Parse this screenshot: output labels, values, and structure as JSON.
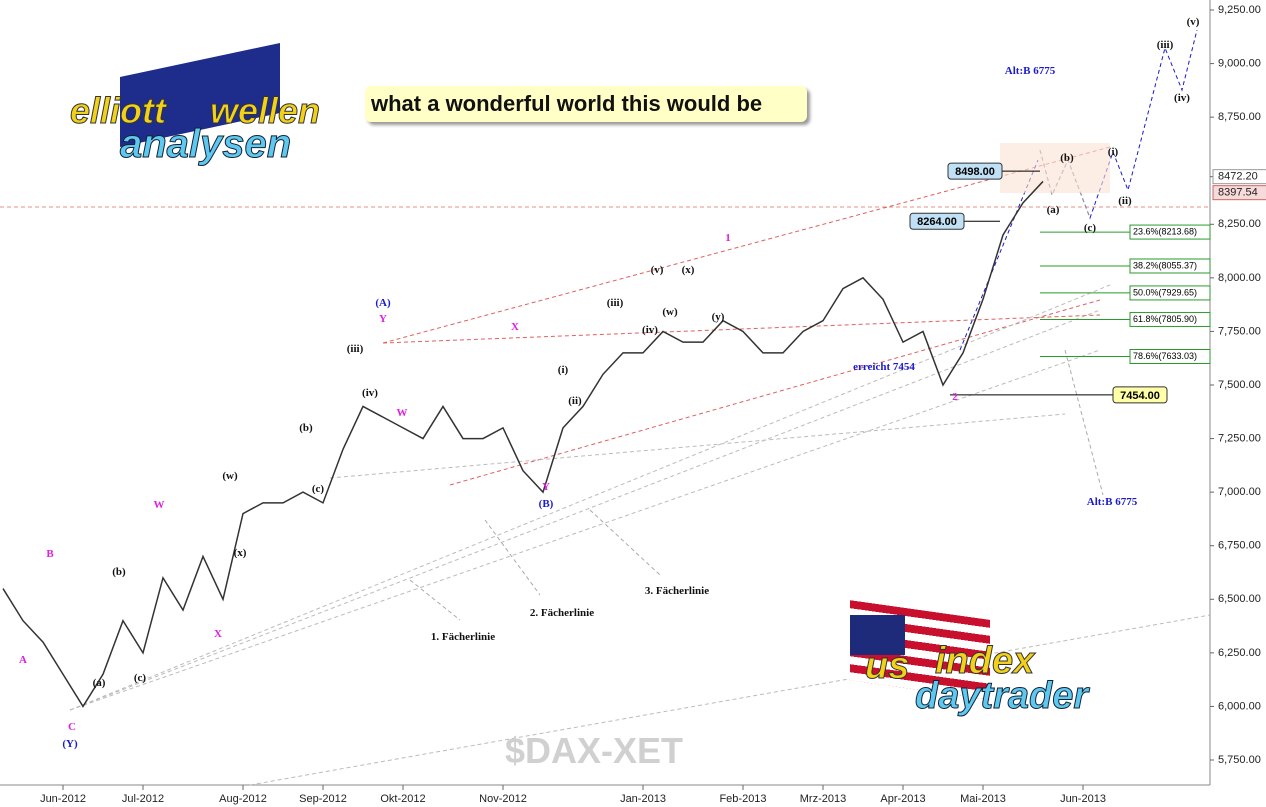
{
  "chart_data": {
    "type": "line",
    "title": "what a wonderful world this would be",
    "symbol": "$DAX-XET",
    "logo_top": [
      "elliott",
      "wellen",
      "analysen"
    ],
    "logo_bottom": [
      "us",
      "index",
      "daytrader"
    ],
    "categories": [
      null,
      null,
      null,
      "Jun-2012",
      null,
      null,
      null,
      "Jul-2012",
      null,
      null,
      null,
      null,
      "Aug-2012",
      null,
      null,
      null,
      "Sep-2012",
      null,
      null,
      null,
      "Okt-2012",
      null,
      null,
      null,
      null,
      "Nov-2012",
      null,
      null,
      null,
      null,
      null,
      null,
      "Jan-2013",
      null,
      null,
      null,
      null,
      "Feb-2013",
      null,
      null,
      null,
      "Mrz-2013",
      null,
      null,
      null,
      "Apr-2013",
      null,
      null,
      null,
      "Mai-2013",
      null,
      null,
      null,
      null,
      "Jun-2013"
    ],
    "series": [
      {
        "name": "$DAX-XET",
        "color": "#333333",
        "values": [
          6550,
          6400,
          6300,
          6150,
          6000,
          6150,
          6400,
          6250,
          6600,
          6450,
          6700,
          6500,
          6900,
          6950,
          6950,
          7000,
          6950,
          7200,
          7400,
          7350,
          7300,
          7250,
          7400,
          7250,
          7250,
          7300,
          7100,
          7000,
          7300,
          7400,
          7550,
          7650,
          7650,
          7750,
          7700,
          7700,
          7800,
          7750,
          7650,
          7650,
          7750,
          7800,
          7950,
          8000,
          7900,
          7700,
          7750,
          7500,
          7650,
          7900,
          8200,
          8350,
          8450,
          null,
          null
        ]
      }
    ],
    "ylim": [
      5750,
      9250
    ],
    "yticks": [
      {
        "value": 5750,
        "label": "5,750.00"
      },
      {
        "value": 6000,
        "label": "6,000.00"
      },
      {
        "value": 6250,
        "label": "6,250.00"
      },
      {
        "value": 6500,
        "label": "6,500.00"
      },
      {
        "value": 6750,
        "label": "6,750.00"
      },
      {
        "value": 7000,
        "label": "7,000.00"
      },
      {
        "value": 7250,
        "label": "7,250.00"
      },
      {
        "value": 7500,
        "label": "7,500.00"
      },
      {
        "value": 7750,
        "label": "7,750.00"
      },
      {
        "value": 8000,
        "label": "8,000.00"
      },
      {
        "value": 8250,
        "label": "8,250.00"
      },
      {
        "value": 8472.2,
        "label": "8472.20"
      },
      {
        "value": 8750,
        "label": "8,750.00"
      },
      {
        "value": 9000,
        "label": "9,000.00"
      },
      {
        "value": 9250,
        "label": "9,250.00"
      }
    ],
    "last_price": {
      "value": 8397.54,
      "label": "8397.54"
    },
    "price_boxes": [
      {
        "value": 8498,
        "label": "8498.00"
      },
      {
        "value": 8264,
        "label": "8264.00"
      },
      {
        "value": 7454,
        "label": "7454.00"
      }
    ],
    "fib_levels": [
      {
        "value": 8213.68,
        "label": "23.6%(8213.68)"
      },
      {
        "value": 8055.37,
        "label": "38.2%(8055.37)"
      },
      {
        "value": 7929.65,
        "label": "50.0%(7929.65)"
      },
      {
        "value": 7805.9,
        "label": "61.8%(7805.90)"
      },
      {
        "value": 7633.03,
        "label": "78.6%(7633.03)"
      }
    ],
    "annotations": [
      "(A)",
      "Y",
      "(B)",
      "Y",
      "(Y)",
      "C",
      "A",
      "B",
      "W",
      "X",
      "W",
      "X",
      "1",
      "2",
      "erreicht 7454",
      "Alt:B 6775",
      "Alt:B 6775",
      "1. Fächerlinie",
      "2. Fächerlinie",
      "3. Fächerlinie",
      "(iii)",
      "(iv)",
      "(v)",
      "(i)",
      "(ii)",
      "(a)",
      "(b)",
      "(c)",
      "(iii)",
      "(iv)",
      "(i)",
      "(ii)",
      "(iii)",
      "(iv)",
      "(v)",
      "(x)",
      "(y)",
      "(w)",
      "(c)",
      "(b)",
      "(a)",
      "(b)",
      "(c)",
      "(x)",
      "(w)"
    ]
  }
}
